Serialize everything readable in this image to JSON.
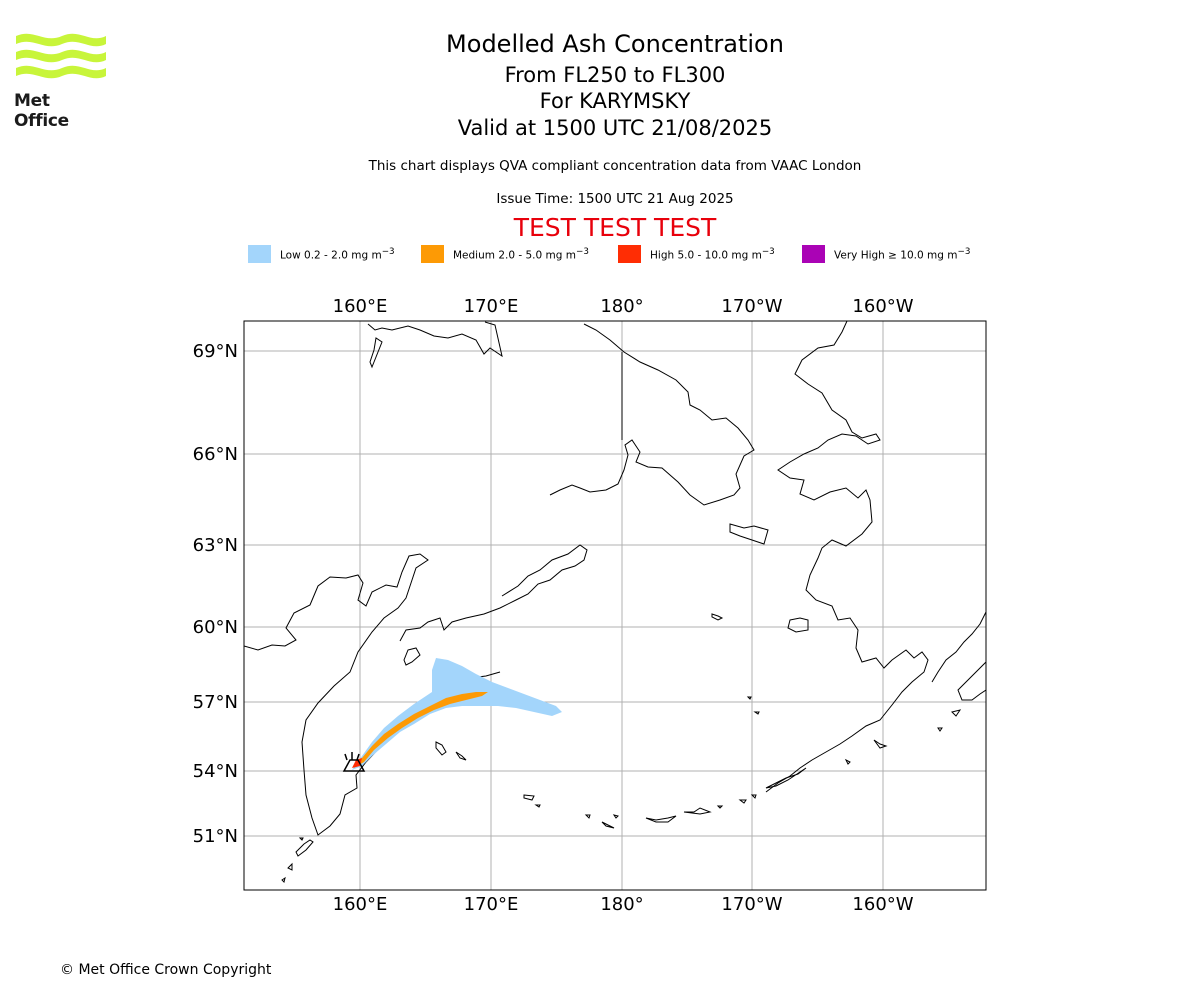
{
  "logo": {
    "text": "Met Office",
    "color": "#c8f53a"
  },
  "header": {
    "title": "Modelled Ash Concentration",
    "levels": "From FL250 to FL300",
    "volcano": "For KARYMSKY",
    "valid": "Valid at 1500 UTC 21/08/2025",
    "subtitle": "This chart displays QVA compliant concentration data from VAAC London",
    "issue_time": "Issue Time: 1500 UTC 21 Aug 2025",
    "test_banner": "TEST TEST TEST"
  },
  "legend": [
    {
      "label": "Low 0.2 - 2.0 mg m",
      "unit_sup": "−3",
      "color": "#a3d5fb"
    },
    {
      "label": "Medium 2.0 - 5.0 mg m",
      "unit_sup": "−3",
      "color": "#fd9a05"
    },
    {
      "label": "High 5.0 - 10.0 mg m",
      "unit_sup": "−3",
      "color": "#ff2d04"
    },
    {
      "label": "Very High ≥ 10.0 mg m",
      "unit_sup": "−3",
      "color": "#aa03b5"
    }
  ],
  "map": {
    "lon_ticks": [
      "160°E",
      "170°E",
      "180°",
      "170°W",
      "160°W"
    ],
    "lat_ticks": [
      "69°N",
      "66°N",
      "63°N",
      "60°N",
      "57°N",
      "54°N",
      "51°N"
    ],
    "ash_levels_present": [
      "Low",
      "Medium",
      "High"
    ],
    "volcano_marker": "KARYMSKY"
  },
  "footer": {
    "copyright": "© Met Office Crown Copyright"
  }
}
